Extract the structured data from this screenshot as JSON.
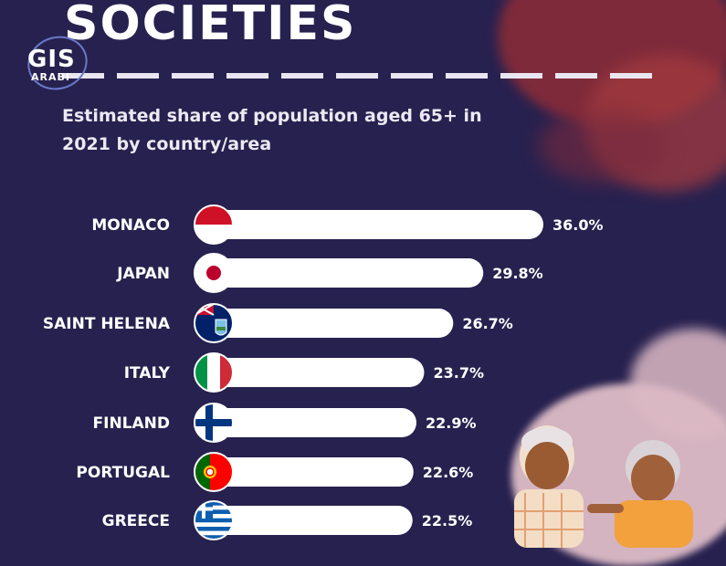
{
  "title": "SOCIETIES",
  "subtitle": "Estimated share of population aged 65+ in 2021 by country/area",
  "logo": {
    "text": "GIS",
    "subtext": "ARABI"
  },
  "colors": {
    "background": "#27214f",
    "bar": "#ffffff",
    "accent_red": "#8e2c37"
  },
  "chart_data": {
    "type": "bar",
    "orientation": "horizontal",
    "categories": [
      "MONACO",
      "JAPAN",
      "SAINT HELENA",
      "ITALY",
      "FINLAND",
      "PORTUGAL",
      "GREECE"
    ],
    "values": [
      36.0,
      29.8,
      26.7,
      23.7,
      22.9,
      22.6,
      22.5
    ],
    "value_labels": [
      "36.0%",
      "29.8%",
      "26.7%",
      "23.7%",
      "22.9%",
      "22.6%",
      "22.5%"
    ],
    "flags": [
      "monaco-flag-icon",
      "japan-flag-icon",
      "saint-helena-flag-icon",
      "italy-flag-icon",
      "finland-flag-icon",
      "portugal-flag-icon",
      "greece-flag-icon"
    ],
    "title": "Estimated share of population aged 65+ in 2021 by country/area",
    "xlim": [
      0,
      36.0
    ],
    "grid": false
  }
}
